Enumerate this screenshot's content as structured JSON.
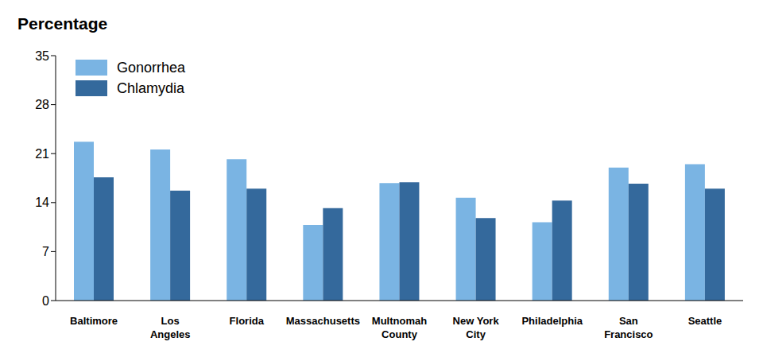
{
  "chart_data": {
    "type": "bar",
    "y_label": "Percentage",
    "categories": [
      "Baltimore",
      "Los Angeles",
      "Florida",
      "Massachusetts",
      "Multnomah County",
      "New York City",
      "Philadelphia",
      "San Francisco",
      "Seattle"
    ],
    "series": [
      {
        "name": "Gonorrhea",
        "color": "#7ab4e3",
        "values": [
          22.7,
          21.6,
          20.2,
          10.8,
          16.8,
          14.7,
          11.2,
          19.0,
          19.5
        ]
      },
      {
        "name": "Chlamydia",
        "color": "#34699c",
        "values": [
          17.6,
          15.7,
          16.0,
          13.2,
          16.9,
          11.8,
          14.3,
          16.7,
          16.0
        ]
      }
    ],
    "ylim": [
      0,
      35
    ],
    "yticks": [
      0,
      7,
      14,
      21,
      28,
      35
    ],
    "grid": false,
    "legend": "top-left"
  }
}
